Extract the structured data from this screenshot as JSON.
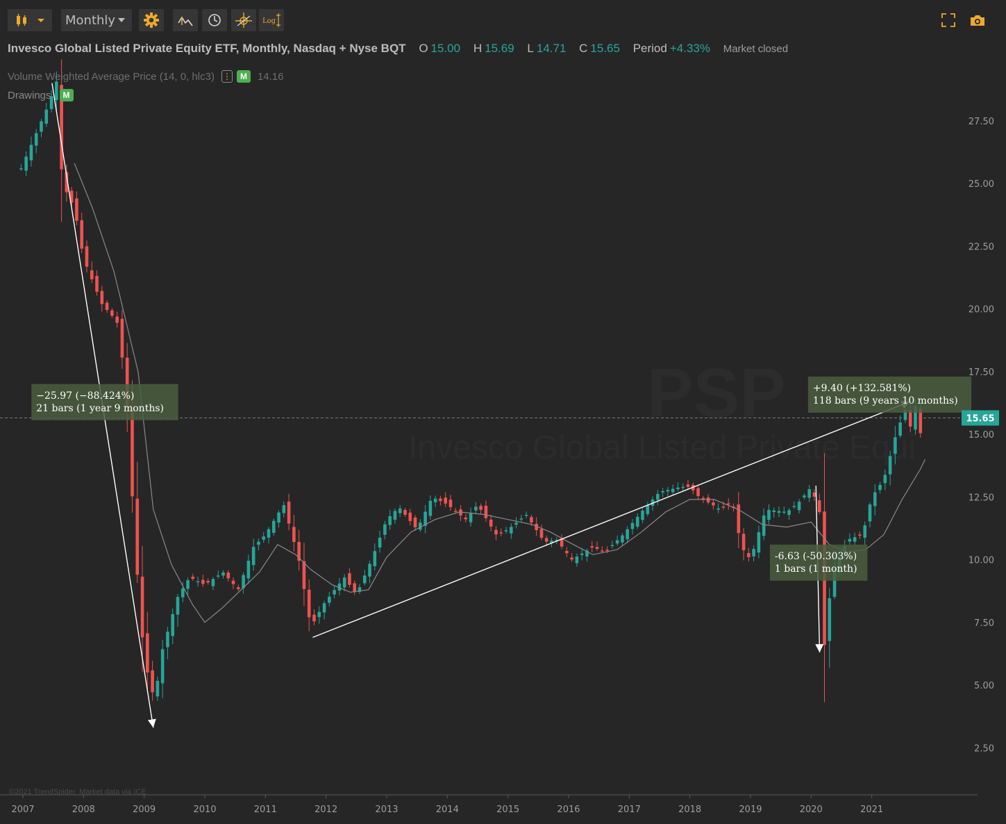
{
  "toolbar": {
    "chart_type_icon": "candlestick-icon",
    "timeframe": "Monthly",
    "buttons": [
      "settings-gear-icon",
      "indicator-icon",
      "clock-icon",
      "crosshair-icon",
      "log-scale-icon"
    ],
    "log_label": "Log",
    "right_icons": [
      "fullscreen-icon",
      "camera-icon"
    ],
    "accent_color": "#f0a92a"
  },
  "header": {
    "title": "Invesco Global Listed Private Equity ETF, Monthly, Nasdaq + Nyse BQT",
    "open_label": "O",
    "open": "15.00",
    "high_label": "H",
    "high": "15.69",
    "low_label": "L",
    "low": "14.71",
    "close_label": "C",
    "close": "15.65",
    "period_label": "Period",
    "period": "+4.33%",
    "status": "Market closed"
  },
  "indicators": {
    "vwap_label": "Volume Weighted Average Price (14, 0, hlc3)",
    "vwap_badge": "⋮",
    "vwap_m": "M",
    "vwap_value": "14.16",
    "drawings_label": "Drawings",
    "drawings_m": "M"
  },
  "watermark": {
    "symbol": "PSP",
    "name": "Invesco Global Listed Private Equi"
  },
  "copyright": "©2021 TrendSpider. Market data via ICE",
  "colors": {
    "background": "#262626",
    "up": "#26a69a",
    "down": "#ef5350",
    "axis_text": "#9e9e9e",
    "vwap_line": "#8a8a8a",
    "price_tag": "#26a69a"
  },
  "chart_data": {
    "type": "candlestick",
    "title": "",
    "xlabel": "",
    "ylabel": "",
    "ylim": [
      0.5,
      29
    ],
    "y_ticks": [
      "2.50",
      "5.00",
      "7.50",
      "10.00",
      "12.50",
      "15.00",
      "17.50",
      "20.00",
      "22.50",
      "25.00",
      "27.50"
    ],
    "x_ticks": [
      "2007",
      "2008",
      "2009",
      "2010",
      "2011",
      "2012",
      "2013",
      "2014",
      "2015",
      "2016",
      "2017",
      "2018",
      "2019",
      "2020",
      "2021"
    ],
    "x_range": [
      2006.97,
      2022.85
    ],
    "last_price": "15.65",
    "anchors": [
      [
        2006.97,
        25.6
      ],
      [
        2007.45,
        28.3
      ],
      [
        2007.55,
        29.2
      ],
      [
        2007.65,
        25.0
      ],
      [
        2007.85,
        24.0
      ],
      [
        2008.0,
        22.0
      ],
      [
        2008.3,
        20.2
      ],
      [
        2008.55,
        19.5
      ],
      [
        2008.7,
        17.0
      ],
      [
        2008.85,
        10.5
      ],
      [
        2009.0,
        6.0
      ],
      [
        2009.17,
        4.4
      ],
      [
        2009.3,
        6.4
      ],
      [
        2009.55,
        8.5
      ],
      [
        2009.75,
        9.3
      ],
      [
        2010.0,
        9.0
      ],
      [
        2010.3,
        9.5
      ],
      [
        2010.55,
        8.8
      ],
      [
        2010.8,
        10.5
      ],
      [
        2011.0,
        11.0
      ],
      [
        2011.3,
        12.2
      ],
      [
        2011.55,
        10.0
      ],
      [
        2011.75,
        7.3
      ],
      [
        2011.95,
        8.2
      ],
      [
        2012.3,
        9.3
      ],
      [
        2012.5,
        8.6
      ],
      [
        2012.75,
        10.0
      ],
      [
        2013.0,
        11.6
      ],
      [
        2013.2,
        12.1
      ],
      [
        2013.5,
        11.2
      ],
      [
        2013.75,
        12.5
      ],
      [
        2014.0,
        12.2
      ],
      [
        2014.3,
        11.6
      ],
      [
        2014.5,
        12.2
      ],
      [
        2014.8,
        11.0
      ],
      [
        2015.0,
        11.2
      ],
      [
        2015.3,
        11.8
      ],
      [
        2015.6,
        10.7
      ],
      [
        2015.8,
        10.8
      ],
      [
        2016.05,
        10.0
      ],
      [
        2016.4,
        10.5
      ],
      [
        2016.6,
        10.3
      ],
      [
        2016.9,
        11.0
      ],
      [
        2017.2,
        11.9
      ],
      [
        2017.5,
        12.7
      ],
      [
        2017.85,
        12.9
      ],
      [
        2018.0,
        12.9
      ],
      [
        2018.15,
        12.5
      ],
      [
        2018.5,
        12.0
      ],
      [
        2018.7,
        12.3
      ],
      [
        2018.85,
        10.5
      ],
      [
        2019.0,
        10.0
      ],
      [
        2019.25,
        12.0
      ],
      [
        2019.6,
        11.9
      ],
      [
        2019.8,
        12.3
      ],
      [
        2020.0,
        12.9
      ],
      [
        2020.15,
        11.8
      ],
      [
        2020.22,
        6.6
      ],
      [
        2020.35,
        9.5
      ],
      [
        2020.6,
        10.8
      ],
      [
        2020.85,
        11.0
      ],
      [
        2021.0,
        12.5
      ],
      [
        2021.2,
        13.2
      ],
      [
        2021.4,
        15.0
      ],
      [
        2021.55,
        16.0
      ],
      [
        2021.65,
        15.2
      ],
      [
        2021.75,
        16.5
      ],
      [
        2021.8,
        15.0
      ],
      [
        2021.85,
        15.65
      ]
    ],
    "vwap_series": [
      [
        2007.85,
        25.8
      ],
      [
        2008.15,
        24.0
      ],
      [
        2008.5,
        21.5
      ],
      [
        2008.9,
        17.5
      ],
      [
        2009.15,
        12.0
      ],
      [
        2009.45,
        9.8
      ],
      [
        2009.8,
        8.2
      ],
      [
        2010.0,
        7.5
      ],
      [
        2010.3,
        8.1
      ],
      [
        2010.6,
        8.8
      ],
      [
        2010.9,
        9.5
      ],
      [
        2011.2,
        10.6
      ],
      [
        2011.5,
        10.2
      ],
      [
        2011.75,
        9.6
      ],
      [
        2012.1,
        9.0
      ],
      [
        2012.4,
        8.7
      ],
      [
        2012.7,
        8.8
      ],
      [
        2013.0,
        10.1
      ],
      [
        2013.4,
        11.1
      ],
      [
        2013.8,
        11.6
      ],
      [
        2014.2,
        11.9
      ],
      [
        2014.6,
        11.8
      ],
      [
        2015.0,
        11.6
      ],
      [
        2015.4,
        11.4
      ],
      [
        2015.7,
        11.1
      ],
      [
        2016.0,
        10.7
      ],
      [
        2016.4,
        10.2
      ],
      [
        2016.8,
        10.4
      ],
      [
        2017.2,
        11.1
      ],
      [
        2017.6,
        11.9
      ],
      [
        2018.0,
        12.4
      ],
      [
        2018.4,
        12.4
      ],
      [
        2018.8,
        12.0
      ],
      [
        2019.2,
        11.4
      ],
      [
        2019.6,
        11.3
      ],
      [
        2020.0,
        11.5
      ],
      [
        2020.3,
        10.6
      ],
      [
        2020.6,
        10.3
      ],
      [
        2020.9,
        10.4
      ],
      [
        2021.2,
        11.0
      ],
      [
        2021.5,
        12.4
      ],
      [
        2021.8,
        13.6
      ],
      [
        2021.88,
        14.0
      ]
    ],
    "annotations": [
      {
        "text": [
          "−25.97 (−88.424%)",
          "21 bars (1 year 9 months)"
        ],
        "from": [
          2007.48,
          29.0
        ],
        "to": [
          2009.15,
          3.3
        ],
        "label_at": [
          2007.14,
          17.0
        ]
      },
      {
        "text": [
          "+9.40 (+132.581%)",
          "118 bars (9 years 10 months)"
        ],
        "from": [
          2011.78,
          6.9
        ],
        "to": [
          2021.63,
          16.3
        ],
        "label_at": [
          2019.95,
          17.3
        ]
      },
      {
        "text": [
          "-6.63 (-50.303%)",
          "1 bars (1 month)"
        ],
        "from": [
          2020.08,
          12.95
        ],
        "to": [
          2020.14,
          6.3
        ],
        "label_at": [
          2019.32,
          10.6
        ]
      }
    ]
  }
}
